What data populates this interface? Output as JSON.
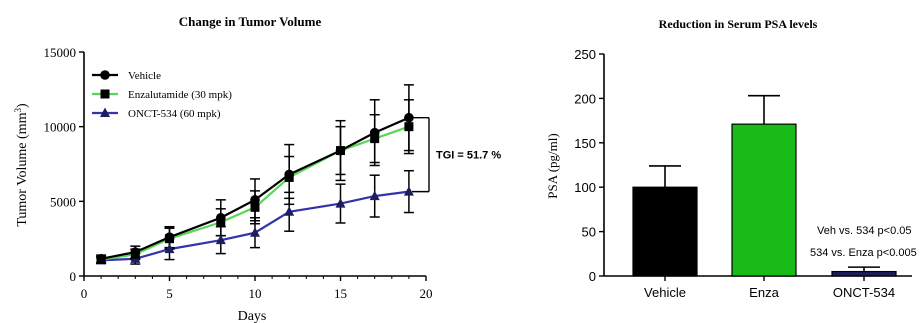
{
  "chart_data": [
    {
      "type": "line",
      "title": "Change in Tumor  Volume",
      "xlabel": "Days",
      "ylabel_main": "Tumor Volume (mm",
      "ylabel_sup": "3",
      "ylabel_close": ")",
      "xlim": [
        0,
        20
      ],
      "ylim": [
        0,
        15000
      ],
      "xticks": [
        "0",
        "5",
        "10",
        "15",
        "20"
      ],
      "yticks": [
        "0",
        "5000",
        "10000",
        "15000"
      ],
      "grid": false,
      "legend_position": "top-left",
      "series": [
        {
          "name": "Vehicle",
          "line_color": "#000000",
          "marker": "circle",
          "x": [
            1,
            3,
            5,
            8,
            10,
            12,
            15,
            17,
            19
          ],
          "y": [
            1150,
            1600,
            2600,
            3900,
            5100,
            6800,
            8400,
            9600,
            10600
          ],
          "err": [
            250,
            400,
            700,
            1200,
            1400,
            2000,
            2000,
            2200,
            2200
          ]
        },
        {
          "name": "Enzalutamide (30 mpk)",
          "line_color": "#5ad55a",
          "marker": "square",
          "x": [
            1,
            3,
            5,
            8,
            10,
            12,
            15,
            17,
            19
          ],
          "y": [
            1100,
            1450,
            2500,
            3600,
            4600,
            6600,
            8400,
            9200,
            10000
          ],
          "err": [
            200,
            350,
            700,
            900,
            1100,
            1400,
            1600,
            1600,
            1800
          ]
        },
        {
          "name": "ONCT-534 (60 mpk)",
          "line_color": "#3333aa",
          "marker": "triangle",
          "x": [
            1,
            3,
            5,
            8,
            10,
            12,
            15,
            17,
            19
          ],
          "y": [
            1050,
            1150,
            1800,
            2400,
            2900,
            4300,
            4850,
            5350,
            5650
          ],
          "err": [
            200,
            350,
            700,
            900,
            1000,
            1300,
            1300,
            1400,
            1400
          ]
        }
      ],
      "annotation": "TGI = 51.7 %",
      "annotation_range": [
        5650,
        10600
      ]
    },
    {
      "type": "bar",
      "title": "Reduction in Serum PSA levels",
      "xlabel": "",
      "ylabel": "PSA (pg/ml)",
      "ylim": [
        0,
        250
      ],
      "yticks": [
        "0",
        "50",
        "100",
        "150",
        "200",
        "250"
      ],
      "grid": false,
      "categories": [
        "Vehicle",
        "Enza",
        "ONCT-534"
      ],
      "values": [
        100,
        171,
        5
      ],
      "errors": [
        24,
        32,
        5
      ],
      "colors": [
        "#000000",
        "#18bb18",
        "#1b1f5e"
      ],
      "annotations": [
        "Veh vs. 534 p<0.05",
        "534 vs. Enza p<0.005"
      ]
    }
  ]
}
